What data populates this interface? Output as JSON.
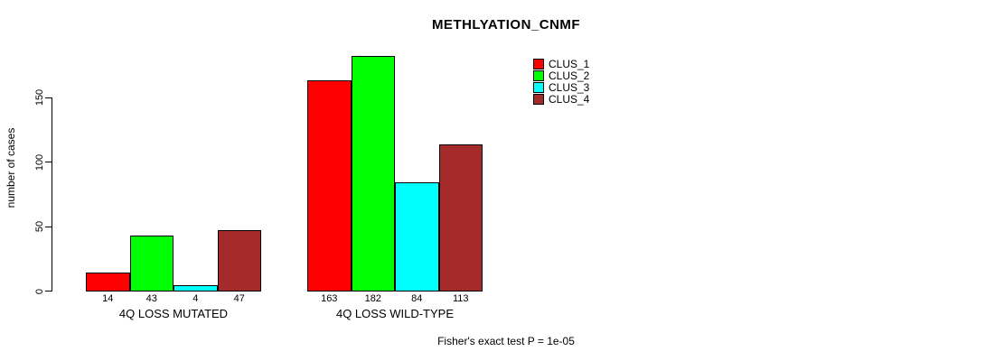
{
  "chart_data": {
    "type": "bar",
    "title": "METHLYATION_CNMF",
    "xlabel": "",
    "ylabel": "number of cases",
    "ylim": [
      0,
      185
    ],
    "yticks": [
      0,
      50,
      100,
      150
    ],
    "grid": false,
    "legend_position": "top-right",
    "categories": [
      "4Q LOSS MUTATED",
      "4Q LOSS WILD-TYPE"
    ],
    "series": [
      {
        "name": "CLUS_1",
        "color": "#ff0000",
        "values": [
          14,
          163
        ]
      },
      {
        "name": "CLUS_2",
        "color": "#00ff00",
        "values": [
          43,
          182
        ]
      },
      {
        "name": "CLUS_3",
        "color": "#00ffff",
        "values": [
          4,
          84
        ]
      },
      {
        "name": "CLUS_4",
        "color": "#a52a2a",
        "values": [
          47,
          113
        ]
      }
    ],
    "bar_value_labels": [
      [
        14,
        43,
        4,
        47
      ],
      [
        163,
        182,
        84,
        113
      ]
    ],
    "annotation": "Fisher's exact test P = 1e-05"
  },
  "colors": {
    "axis": "#000000",
    "text": "#000000",
    "background": "#ffffff"
  }
}
